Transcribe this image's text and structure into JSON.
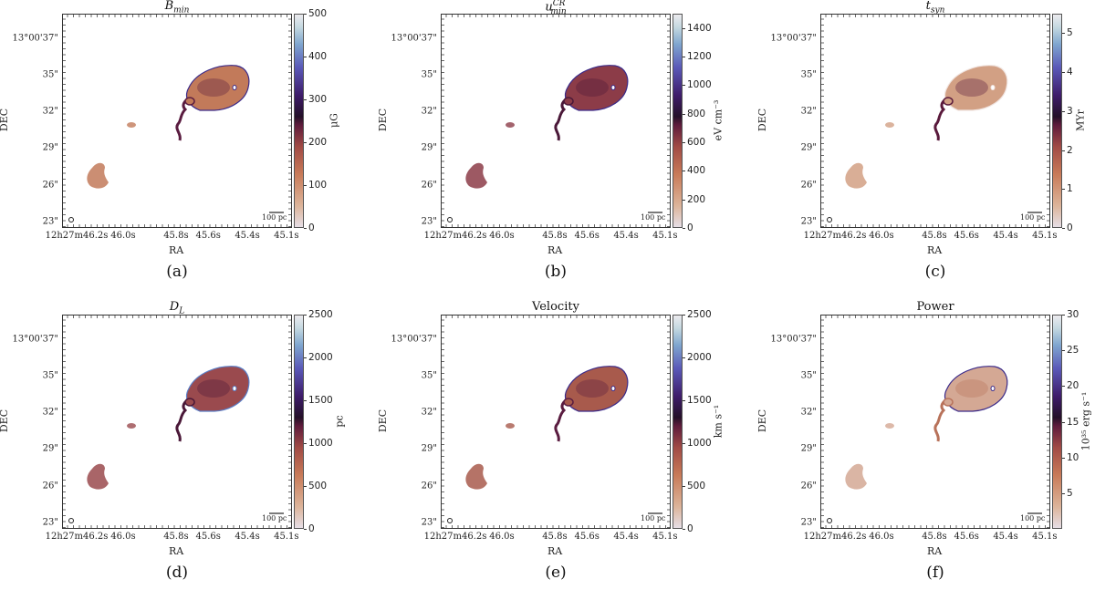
{
  "axis": {
    "xlabel": "RA",
    "ylabel": "DEC",
    "ra_ticks": [
      "12h27m46.2s",
      "46.0s",
      "45.8s",
      "45.6s",
      "45.4s",
      "45.1s"
    ],
    "dec_ticks": [
      "13°00'37\"",
      "35\"",
      "32\"",
      "29\"",
      "26\"",
      "23\""
    ],
    "scale_bar": "100 pc"
  },
  "panels": [
    {
      "title": "B",
      "title_sub": "min",
      "title_sup": "",
      "cbar_label": "μG",
      "cbar_range": [
        0,
        500
      ],
      "cbar_ticks": [
        "0",
        "100",
        "200",
        "300",
        "400",
        "500"
      ],
      "caption": "(a)",
      "fill": "#c27a5a",
      "dark": "#5a1c40",
      "edge": "#3a2a8a"
    },
    {
      "title": "u",
      "title_sub": "min",
      "title_sup": "CR",
      "cbar_label": "eV cm⁻³",
      "cbar_range": [
        0,
        1500
      ],
      "cbar_ticks": [
        "0",
        "200",
        "400",
        "600",
        "800",
        "1000",
        "1200",
        "1400"
      ],
      "caption": "(b)",
      "fill": "#8c3c48",
      "dark": "#4a1838",
      "edge": "#3a2a8a"
    },
    {
      "title": "t",
      "title_sub": "syn",
      "title_sup": "",
      "cbar_label": "MYr",
      "cbar_range": [
        0,
        5.5
      ],
      "cbar_ticks": [
        "0",
        "1",
        "2",
        "3",
        "4",
        "5"
      ],
      "caption": "(c)",
      "fill": "#d2a084",
      "dark": "#5a1a3c",
      "edge": "#f0e4e0"
    },
    {
      "title": "D",
      "title_sub": "L",
      "title_sup": "",
      "cbar_label": "pc",
      "cbar_range": [
        0,
        2500
      ],
      "cbar_ticks": [
        "0",
        "500",
        "1000",
        "1500",
        "2000",
        "2500"
      ],
      "caption": "(d)",
      "fill": "#9a4a4e",
      "dark": "#4a1838",
      "edge": "#5a7fc8"
    },
    {
      "title": "Velocity",
      "title_sub": "",
      "title_sup": "",
      "cbar_label": "km s⁻¹",
      "cbar_range": [
        0,
        2500
      ],
      "cbar_ticks": [
        "0",
        "500",
        "1000",
        "1500",
        "2000",
        "2500"
      ],
      "caption": "(e)",
      "fill": "#a85a4c",
      "dark": "#5a1c40",
      "edge": "#3a2a8a"
    },
    {
      "title": "Power",
      "title_sub": "",
      "title_sup": "",
      "cbar_label": "10³⁵ erg s⁻¹",
      "cbar_range": [
        0,
        30
      ],
      "cbar_ticks": [
        "5",
        "10",
        "15",
        "20",
        "25",
        "30"
      ],
      "caption": "(f)",
      "fill": "#d4a894",
      "dark": "#b8725a",
      "edge": "#3a2a8a"
    }
  ]
}
